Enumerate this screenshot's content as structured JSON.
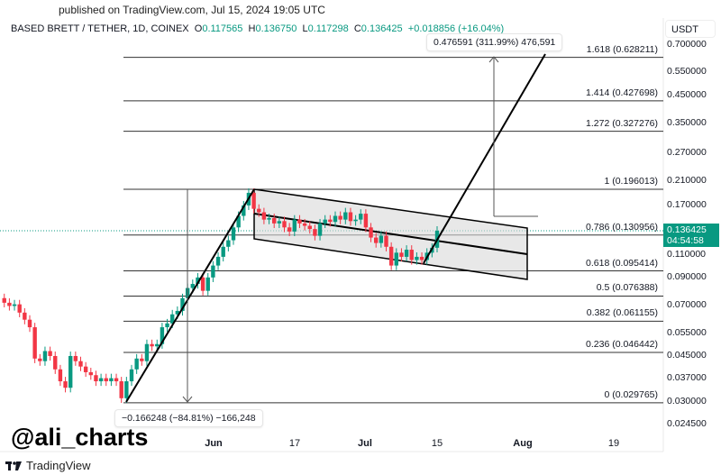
{
  "published": "published on TradingView.com, Jul 15, 2024 19:05 UTC",
  "legend": {
    "symbol": "BASED BRETT / TETHER, 1D, COINEX",
    "o_label": "O",
    "o": "0.117565",
    "h_label": "H",
    "h": "0.136750",
    "l_label": "L",
    "l": "0.117298",
    "c_label": "C",
    "c": "0.136425",
    "change": "+0.018856 (+16.04%)"
  },
  "price_axis": {
    "currency": "USDT",
    "ticks": [
      "0.700000",
      "0.550000",
      "0.450000",
      "0.350000",
      "0.270000",
      "0.210000",
      "0.170000",
      "0.110000",
      "0.090000",
      "0.070000",
      "0.055000",
      "0.045000",
      "0.037000",
      "0.030000",
      "0.024500"
    ],
    "last_price": "0.136425",
    "countdown": "04:54:58"
  },
  "fib_levels": [
    {
      "label": "1.618 (0.628211)",
      "price": 0.628211
    },
    {
      "label": "1.414 (0.427698)",
      "price": 0.427698
    },
    {
      "label": "1.272 (0.327276)",
      "price": 0.327276
    },
    {
      "label": "1 (0.196013)",
      "price": 0.196013
    },
    {
      "label": "0.786 (0.130956)",
      "price": 0.130956
    },
    {
      "label": "0.618 (0.095414)",
      "price": 0.095414
    },
    {
      "label": "0.5 (0.076388)",
      "price": 0.076388
    },
    {
      "label": "0.382 (0.061155)",
      "price": 0.061155
    },
    {
      "label": "0.236 (0.046442)",
      "price": 0.046442
    },
    {
      "label": "0 (0.029765)",
      "price": 0.029765
    }
  ],
  "measure_up": "0.476591 (311.99%) 476,591",
  "measure_down": "−0.166248 (−84.81%) −166,248",
  "date_axis": [
    "Jun",
    "17",
    "Jul",
    "15",
    "Aug",
    "19"
  ],
  "watermark": "@ali_charts",
  "footer": "TradingView",
  "colors": {
    "up": "#089981",
    "down": "#f23645"
  },
  "chart_data": {
    "type": "candlestick",
    "first_open": 0.075,
    "closes": [
      0.072,
      0.07,
      0.071,
      0.066,
      0.062,
      0.058,
      0.044,
      0.043,
      0.047,
      0.045,
      0.04,
      0.036,
      0.034,
      0.045,
      0.043,
      0.041,
      0.039,
      0.038,
      0.036,
      0.037,
      0.036,
      0.037,
      0.036,
      0.031,
      0.036,
      0.04,
      0.044,
      0.043,
      0.05,
      0.049,
      0.05,
      0.058,
      0.06,
      0.065,
      0.067,
      0.075,
      0.082,
      0.085,
      0.09,
      0.08,
      0.09,
      0.1,
      0.108,
      0.118,
      0.125,
      0.14,
      0.155,
      0.17,
      0.19,
      0.165,
      0.16,
      0.15,
      0.152,
      0.145,
      0.148,
      0.14,
      0.135,
      0.15,
      0.145,
      0.142,
      0.138,
      0.13,
      0.145,
      0.15,
      0.147,
      0.155,
      0.15,
      0.16,
      0.148,
      0.15,
      0.158,
      0.14,
      0.128,
      0.122,
      0.13,
      0.118,
      0.1,
      0.112,
      0.108,
      0.115,
      0.105,
      0.108,
      0.105,
      0.112,
      0.117,
      0.136
    ],
    "scale": "log",
    "last_date": "Jul 15"
  }
}
